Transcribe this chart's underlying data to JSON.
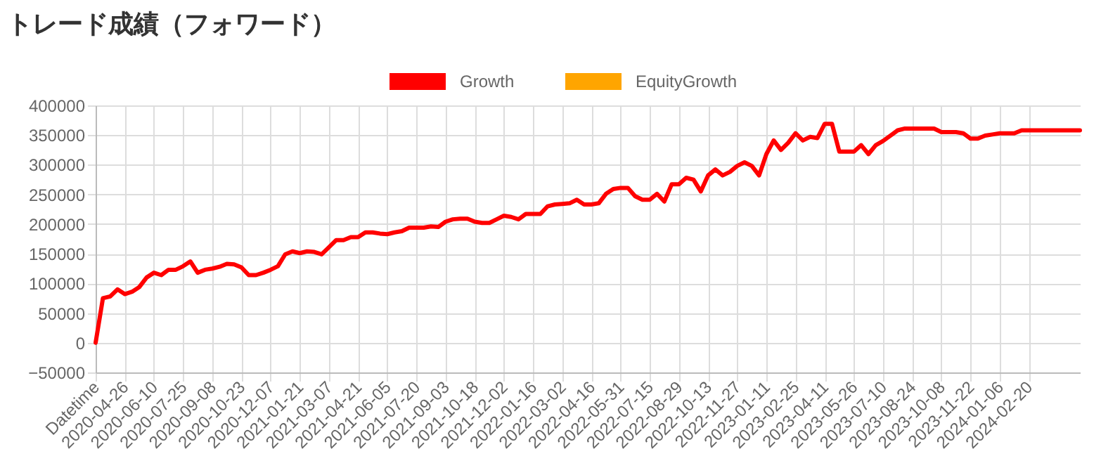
{
  "chart_data": {
    "type": "line",
    "title": "トレード成績（フォワード）",
    "categories": [
      "Datetime",
      null,
      null,
      null,
      "2020-04-26",
      null,
      null,
      null,
      "2020-06-10",
      null,
      null,
      null,
      "2020-07-25",
      null,
      null,
      null,
      "2020-09-08",
      null,
      null,
      null,
      "2020-10-23",
      null,
      null,
      null,
      "2020-12-07",
      null,
      null,
      null,
      "2021-01-21",
      null,
      null,
      null,
      "2021-03-07",
      null,
      null,
      null,
      "2021-04-21",
      null,
      null,
      null,
      "2021-06-05",
      null,
      null,
      null,
      "2021-07-20",
      null,
      null,
      null,
      "2021-09-03",
      null,
      null,
      null,
      "2021-10-18",
      null,
      null,
      null,
      "2021-12-02",
      null,
      null,
      null,
      "2022-01-16",
      null,
      null,
      null,
      "2022-03-02",
      null,
      null,
      null,
      "2022-04-16",
      null,
      null,
      null,
      "2022-05-31",
      null,
      null,
      null,
      "2022-07-15",
      null,
      null,
      null,
      "2022-08-29",
      null,
      null,
      null,
      "2022-10-13",
      null,
      null,
      null,
      "2022-11-27",
      null,
      null,
      null,
      "2023-01-11",
      null,
      null,
      null,
      "2023-02-25",
      null,
      null,
      null,
      "2023-04-11",
      null,
      null,
      null,
      "2023-05-26",
      null,
      null,
      null,
      "2023-07-10",
      null,
      null,
      null,
      "2023-08-24",
      null,
      null,
      null,
      "2023-10-08",
      null,
      null,
      null,
      "2023-11-22",
      null,
      null,
      null,
      "2024-01-06",
      null,
      null,
      null,
      "2024-02-20",
      null,
      null,
      null,
      null,
      null,
      null,
      null
    ],
    "series": [
      {
        "name": "Growth",
        "color": "#ff0000",
        "values": [
          0,
          75000,
          78000,
          90000,
          82000,
          86000,
          94000,
          110000,
          118000,
          114000,
          123000,
          123000,
          129000,
          137000,
          118000,
          123000,
          125000,
          128000,
          133000,
          132000,
          127000,
          114000,
          114000,
          118000,
          123000,
          129000,
          149000,
          154000,
          151000,
          154000,
          153000,
          149000,
          161000,
          173000,
          173000,
          178000,
          178000,
          186000,
          186000,
          184000,
          183000,
          186000,
          188000,
          194000,
          194000,
          194000,
          196000,
          195000,
          204000,
          208000,
          209000,
          209000,
          204000,
          202000,
          202000,
          208000,
          214000,
          212000,
          208000,
          217000,
          217000,
          217000,
          230000,
          233000,
          234000,
          235000,
          241000,
          233000,
          233000,
          235000,
          251000,
          259000,
          261000,
          261000,
          247000,
          241000,
          241000,
          251000,
          238000,
          267000,
          267000,
          278000,
          275000,
          255000,
          282000,
          292000,
          282000,
          288000,
          298000,
          304000,
          298000,
          282000,
          318000,
          341000,
          325000,
          337000,
          353000,
          341000,
          347000,
          345000,
          369000,
          369000,
          322000,
          322000,
          322000,
          333000,
          318000,
          333000,
          340000,
          349000,
          358000,
          361000,
          361000,
          361000,
          361000,
          361000,
          355000,
          355000,
          355000,
          353000,
          344000,
          344000,
          349000,
          351000,
          353000,
          353000,
          353000,
          358000,
          358000,
          358000,
          358000,
          358000,
          358000,
          358000,
          358000,
          358000
        ]
      },
      {
        "name": "EquityGrowth",
        "color": "#ffa500",
        "values": [
          null,
          null,
          null,
          null,
          null,
          null,
          null,
          null,
          null,
          null,
          null,
          null,
          null,
          null,
          null,
          null,
          null,
          null,
          null,
          null,
          null,
          null,
          null,
          null,
          null,
          null,
          null,
          null,
          null,
          null,
          null,
          null,
          null,
          null,
          null,
          null,
          null,
          null,
          null,
          null,
          null,
          null,
          null,
          null,
          null,
          null,
          null,
          null,
          null,
          null,
          null,
          null,
          null,
          null,
          null,
          null,
          null,
          null,
          null,
          null,
          null,
          null,
          null,
          null,
          null,
          null,
          null,
          null,
          null,
          null,
          null,
          null,
          null,
          null,
          null,
          null,
          null,
          null,
          null,
          null,
          null,
          null,
          null,
          null,
          null,
          null,
          null,
          null,
          null,
          null,
          null,
          null,
          null,
          null,
          null,
          null,
          null,
          null,
          null,
          null,
          null,
          null,
          null,
          null,
          null,
          null,
          null,
          null,
          null,
          null,
          null,
          null,
          null,
          null,
          null,
          null,
          null,
          null,
          null,
          null,
          null,
          null,
          null,
          null,
          null,
          null,
          null,
          null,
          null,
          null,
          null,
          null,
          null,
          null,
          null,
          null
        ]
      }
    ],
    "ylim": [
      -50000,
      400000
    ],
    "yticks": [
      -50000,
      0,
      50000,
      100000,
      150000,
      200000,
      250000,
      300000,
      350000,
      400000
    ],
    "grid": true,
    "legend": "top"
  }
}
